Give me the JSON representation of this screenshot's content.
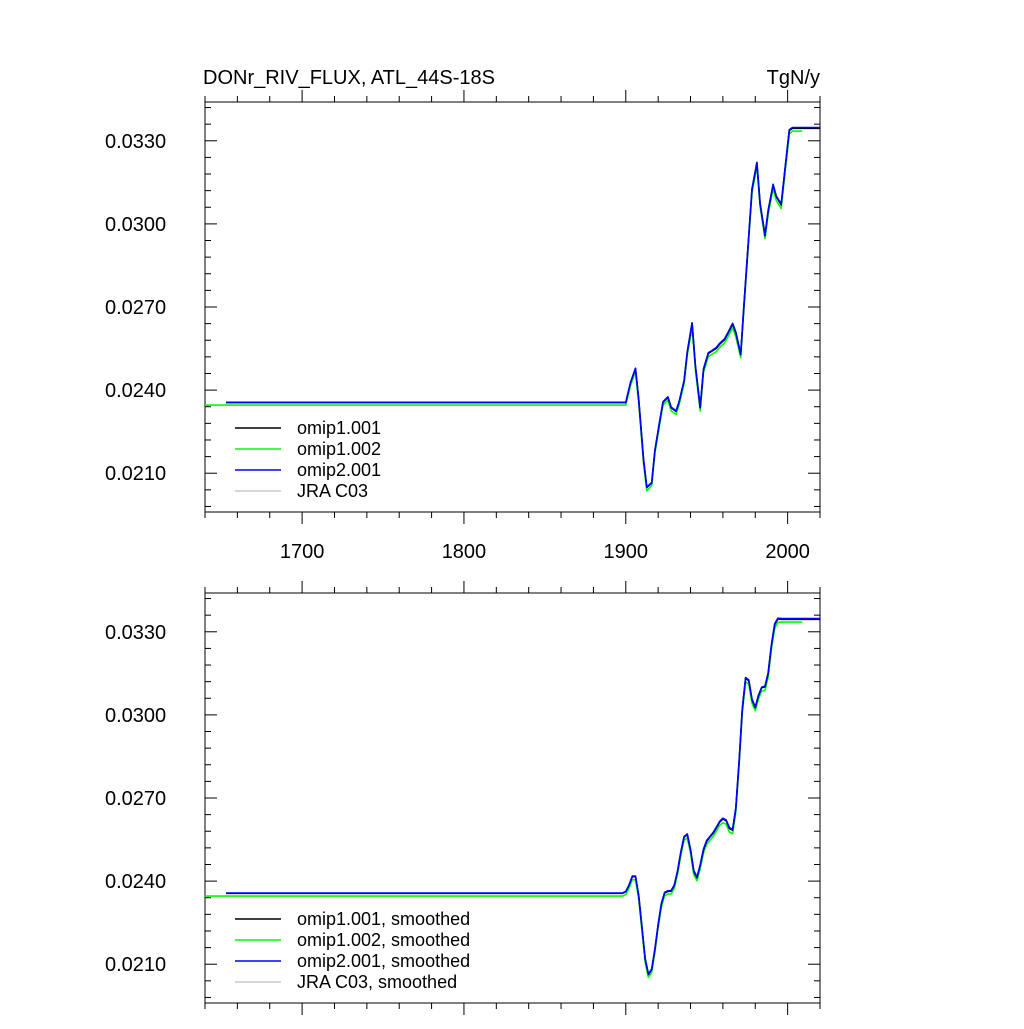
{
  "chart_data": [
    {
      "type": "line",
      "title": "DONr_RIV_FLUX, ATL_44S-18S",
      "units": "TgN/y",
      "xlabel": "",
      "ylabel": "",
      "xlim": [
        1640,
        2020
      ],
      "ylim": [
        0.0196,
        0.0344
      ],
      "xticks": [
        1700,
        1800,
        1900,
        2000
      ],
      "yticks": [
        0.021,
        0.024,
        0.027,
        0.03,
        0.033
      ],
      "ytick_labels": [
        "0.0210",
        "0.0240",
        "0.0270",
        "0.0300",
        "0.0330"
      ],
      "show_x_tick_labels": true,
      "grid": false,
      "legend_position": "bottom-left",
      "series": [
        {
          "name": "omip1.001",
          "color": "#000000",
          "x": [
            1653,
            1900,
            1903,
            1906,
            1908,
            1911,
            1913,
            1916,
            1918,
            1921,
            1923,
            1926,
            1928,
            1931,
            1933,
            1936,
            1938,
            1941,
            1943,
            1946,
            1948,
            1951,
            1953,
            1956,
            1958,
            1961,
            1963,
            1966,
            1968,
            1971,
            1973,
            1976,
            1978,
            1981,
            1983,
            1986,
            1988,
            1991,
            1993,
            1996,
            1998,
            2001,
            2003,
            2026
          ],
          "y": [
            0.02355,
            0.02355,
            0.02428,
            0.02477,
            0.02366,
            0.02146,
            0.02048,
            0.02065,
            0.02181,
            0.02289,
            0.02356,
            0.02374,
            0.02337,
            0.02323,
            0.02358,
            0.02433,
            0.02537,
            0.02641,
            0.02486,
            0.02336,
            0.02474,
            0.02532,
            0.0254,
            0.02551,
            0.02566,
            0.02582,
            0.02604,
            0.02638,
            0.02607,
            0.02528,
            0.02703,
            0.02957,
            0.03124,
            0.0322,
            0.03072,
            0.02957,
            0.03047,
            0.0314,
            0.03098,
            0.03069,
            0.03176,
            0.03337,
            0.03345,
            0.03345
          ]
        },
        {
          "name": "omip1.002",
          "color": "#00ff00",
          "x": [
            1640,
            1900,
            1903,
            1906,
            1908,
            1911,
            1913,
            1916,
            1918,
            1921,
            1923,
            1926,
            1928,
            1931,
            1933,
            1936,
            1938,
            1941,
            1943,
            1946,
            1948,
            1951,
            1953,
            1956,
            1958,
            1961,
            1963,
            1966,
            1968,
            1971,
            1973,
            1976,
            1978,
            1981,
            1983,
            1986,
            1988,
            1991,
            1993,
            1996,
            1998,
            2001,
            2003,
            2006,
            2009
          ],
          "y": [
            0.02346,
            0.02346,
            0.02418,
            0.02466,
            0.02353,
            0.02133,
            0.02036,
            0.02055,
            0.02171,
            0.02279,
            0.02346,
            0.02364,
            0.02326,
            0.02312,
            0.02348,
            0.02423,
            0.02526,
            0.02628,
            0.02474,
            0.02325,
            0.02463,
            0.02521,
            0.02528,
            0.02539,
            0.02554,
            0.0257,
            0.02591,
            0.02624,
            0.02593,
            0.02517,
            0.02691,
            0.02945,
            0.03112,
            0.03207,
            0.03061,
            0.02947,
            0.03034,
            0.03127,
            0.03084,
            0.03056,
            0.03163,
            0.03325,
            0.03335,
            0.03335,
            0.03335
          ]
        },
        {
          "name": "omip2.001",
          "color": "#0000ff",
          "x": [
            1653,
            1900,
            1903,
            1906,
            1908,
            1911,
            1913,
            1916,
            1918,
            1921,
            1923,
            1926,
            1928,
            1931,
            1933,
            1936,
            1938,
            1941,
            1943,
            1946,
            1948,
            1951,
            1953,
            1956,
            1958,
            1961,
            1963,
            1966,
            1968,
            1971,
            1973,
            1976,
            1978,
            1981,
            1983,
            1986,
            1988,
            1991,
            1993,
            1996,
            1998,
            2001,
            2003,
            2026
          ],
          "y": [
            0.02356,
            0.02356,
            0.02429,
            0.02479,
            0.02368,
            0.02148,
            0.0205,
            0.02067,
            0.02183,
            0.02291,
            0.02358,
            0.02376,
            0.02339,
            0.02325,
            0.0236,
            0.02435,
            0.02539,
            0.02643,
            0.02489,
            0.02339,
            0.02477,
            0.02535,
            0.02542,
            0.02554,
            0.02569,
            0.02585,
            0.02607,
            0.02641,
            0.0261,
            0.02531,
            0.02706,
            0.0296,
            0.03127,
            0.03222,
            0.03075,
            0.0296,
            0.0305,
            0.03143,
            0.031,
            0.03072,
            0.03179,
            0.0334,
            0.03348,
            0.03348
          ]
        },
        {
          "name": "JRA C03",
          "color": "#c8c8c8",
          "x": [],
          "y": []
        }
      ]
    },
    {
      "type": "line",
      "title": "",
      "units": "",
      "xlabel": "",
      "ylabel": "",
      "xlim": [
        1640,
        2020
      ],
      "ylim": [
        0.0196,
        0.0344
      ],
      "xticks": [
        1700,
        1800,
        1900,
        2000
      ],
      "yticks": [
        0.021,
        0.024,
        0.027,
        0.03,
        0.033
      ],
      "ytick_labels": [
        "0.0210",
        "0.0240",
        "0.0270",
        "0.0300",
        "0.0330"
      ],
      "show_x_tick_labels": false,
      "grid": false,
      "legend_position": "bottom-left",
      "series": [
        {
          "name": "omip1.001, smoothed",
          "color": "#000000",
          "x": [
            1653,
            1898,
            1900,
            1902,
            1904,
            1906,
            1908,
            1910,
            1912,
            1914,
            1916,
            1918,
            1920,
            1922,
            1924,
            1926,
            1928,
            1930,
            1932,
            1934,
            1936,
            1938,
            1940,
            1942,
            1944,
            1946,
            1948,
            1950,
            1952,
            1954,
            1956,
            1958,
            1960,
            1962,
            1964,
            1966,
            1968,
            1970,
            1972,
            1974,
            1976,
            1978,
            1980,
            1982,
            1984,
            1986,
            1988,
            1990,
            1992,
            1994,
            1996,
            1998,
            2000,
            2002,
            2004,
            2006,
            2026
          ],
          "y": [
            0.02356,
            0.02356,
            0.02362,
            0.02385,
            0.02416,
            0.02416,
            0.02347,
            0.02231,
            0.02118,
            0.02063,
            0.02081,
            0.02153,
            0.02243,
            0.02318,
            0.02357,
            0.02363,
            0.02364,
            0.02384,
            0.02436,
            0.02503,
            0.02559,
            0.02568,
            0.02513,
            0.02435,
            0.02412,
            0.02456,
            0.02513,
            0.02544,
            0.02559,
            0.02573,
            0.02592,
            0.02613,
            0.02624,
            0.02618,
            0.0259,
            0.02584,
            0.02661,
            0.0283,
            0.0302,
            0.03132,
            0.03123,
            0.03054,
            0.03026,
            0.03069,
            0.03098,
            0.03101,
            0.0315,
            0.0325,
            0.03326,
            0.03346,
            0.03345,
            0.03345,
            0.03345,
            0.03345,
            0.03345,
            0.03345,
            0.03345
          ]
        },
        {
          "name": "omip1.002, smoothed",
          "color": "#00ff00",
          "x": [
            1640,
            1898,
            1900,
            1902,
            1904,
            1906,
            1908,
            1910,
            1912,
            1914,
            1916,
            1918,
            1920,
            1922,
            1924,
            1926,
            1928,
            1930,
            1932,
            1934,
            1936,
            1938,
            1940,
            1942,
            1944,
            1946,
            1948,
            1950,
            1952,
            1954,
            1956,
            1958,
            1960,
            1962,
            1964,
            1966,
            1968,
            1970,
            1972,
            1974,
            1976,
            1978,
            1980,
            1982,
            1984,
            1986,
            1988,
            1990,
            1992,
            1994,
            1996,
            1998,
            2000,
            2002,
            2004,
            2006,
            2009
          ],
          "y": [
            0.02346,
            0.02346,
            0.02352,
            0.02374,
            0.02405,
            0.02405,
            0.02335,
            0.02219,
            0.02106,
            0.02052,
            0.0207,
            0.02143,
            0.02233,
            0.02307,
            0.02347,
            0.02353,
            0.02353,
            0.02374,
            0.02426,
            0.02492,
            0.02548,
            0.02556,
            0.02501,
            0.02423,
            0.02401,
            0.02445,
            0.02502,
            0.02533,
            0.02547,
            0.02561,
            0.0258,
            0.02601,
            0.02611,
            0.02605,
            0.02577,
            0.02571,
            0.02649,
            0.02818,
            0.03007,
            0.0312,
            0.03111,
            0.03042,
            0.03015,
            0.03057,
            0.03086,
            0.03088,
            0.03137,
            0.03237,
            0.03313,
            0.03334,
            0.03335,
            0.03335,
            0.03335,
            0.03335,
            0.03335,
            0.03335,
            0.03335
          ]
        },
        {
          "name": "omip2.001, smoothed",
          "color": "#0000ff",
          "x": [
            1653,
            1898,
            1900,
            1902,
            1904,
            1906,
            1908,
            1910,
            1912,
            1914,
            1916,
            1918,
            1920,
            1922,
            1924,
            1926,
            1928,
            1930,
            1932,
            1934,
            1936,
            1938,
            1940,
            1942,
            1944,
            1946,
            1948,
            1950,
            1952,
            1954,
            1956,
            1958,
            1960,
            1962,
            1964,
            1966,
            1968,
            1970,
            1972,
            1974,
            1976,
            1978,
            1980,
            1982,
            1984,
            1986,
            1988,
            1990,
            1992,
            1994,
            1996,
            1998,
            2000,
            2002,
            2004,
            2006,
            2026
          ],
          "y": [
            0.02357,
            0.02357,
            0.02363,
            0.02386,
            0.02418,
            0.02418,
            0.02349,
            0.02233,
            0.0212,
            0.02065,
            0.02083,
            0.02155,
            0.02245,
            0.0232,
            0.02359,
            0.02365,
            0.02366,
            0.02386,
            0.02438,
            0.02505,
            0.02561,
            0.0257,
            0.02515,
            0.02438,
            0.02415,
            0.02459,
            0.02516,
            0.02547,
            0.02561,
            0.02576,
            0.02595,
            0.02616,
            0.02627,
            0.02621,
            0.02593,
            0.02587,
            0.02664,
            0.02833,
            0.03023,
            0.03135,
            0.03126,
            0.03057,
            0.03029,
            0.03072,
            0.031,
            0.03104,
            0.03153,
            0.03253,
            0.03329,
            0.03349,
            0.03348,
            0.03348,
            0.03348,
            0.03348,
            0.03348,
            0.03348,
            0.03348
          ]
        },
        {
          "name": "JRA C03, smoothed",
          "color": "#c8c8c8",
          "x": [],
          "y": []
        }
      ]
    }
  ]
}
